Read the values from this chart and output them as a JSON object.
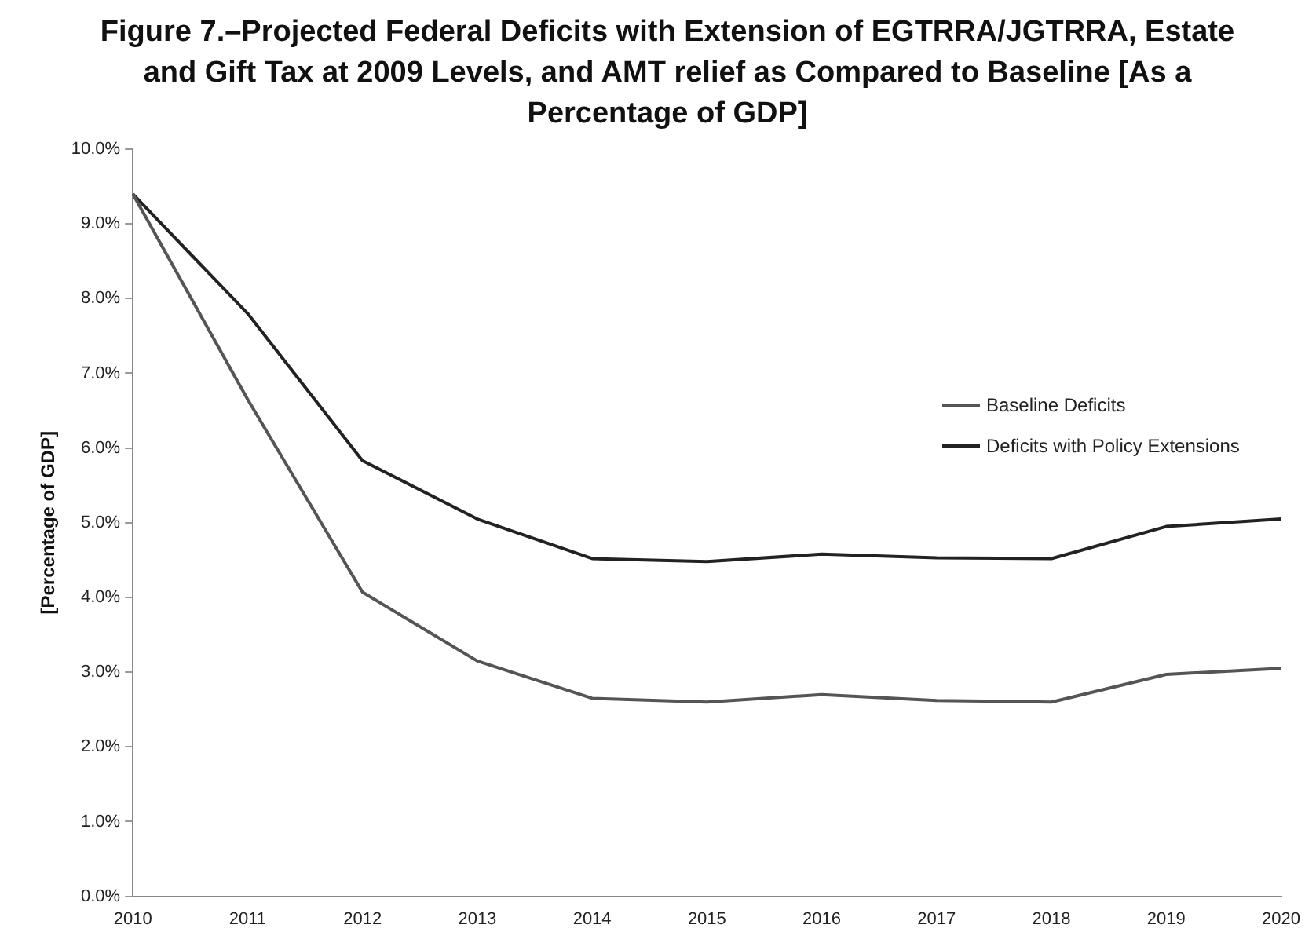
{
  "chart_data": {
    "type": "line",
    "title": "Figure 7.–Projected Federal Deficits with Extension of EGTRRA/JGTRRA, Estate and Gift Tax at 2009 Levels, and AMT relief as Compared  to Baseline [As a Percentage of GDP]",
    "ylabel": "[Percentage of GDP]",
    "categories": [
      "2010",
      "2011",
      "2012",
      "2013",
      "2014",
      "2015",
      "2016",
      "2017",
      "2018",
      "2019",
      "2020"
    ],
    "series": [
      {
        "name": "Baseline Deficits",
        "color": "#555555",
        "values": [
          9.4,
          6.65,
          4.07,
          3.15,
          2.65,
          2.6,
          2.7,
          2.62,
          2.6,
          2.97,
          3.05
        ]
      },
      {
        "name": "Deficits with Policy Extensions",
        "color": "#222222",
        "values": [
          9.4,
          7.8,
          5.83,
          5.05,
          4.52,
          4.48,
          4.58,
          4.53,
          4.52,
          4.95,
          5.05
        ]
      }
    ],
    "ylim": [
      0,
      10
    ],
    "yticks": [
      {
        "value": 0,
        "label": "0.0%"
      },
      {
        "value": 1,
        "label": "1.0%"
      },
      {
        "value": 2,
        "label": "2.0%"
      },
      {
        "value": 3,
        "label": "3.0%"
      },
      {
        "value": 4,
        "label": "4.0%"
      },
      {
        "value": 5,
        "label": "5.0%"
      },
      {
        "value": 6,
        "label": "6.0%"
      },
      {
        "value": 7,
        "label": "7.0%"
      },
      {
        "value": 8,
        "label": "8.0%"
      },
      {
        "value": 9,
        "label": "9.0%"
      },
      {
        "value": 10,
        "label": "10.0%"
      }
    ],
    "grid": false,
    "legend": "right",
    "marker": "none",
    "line_style": "solid"
  }
}
